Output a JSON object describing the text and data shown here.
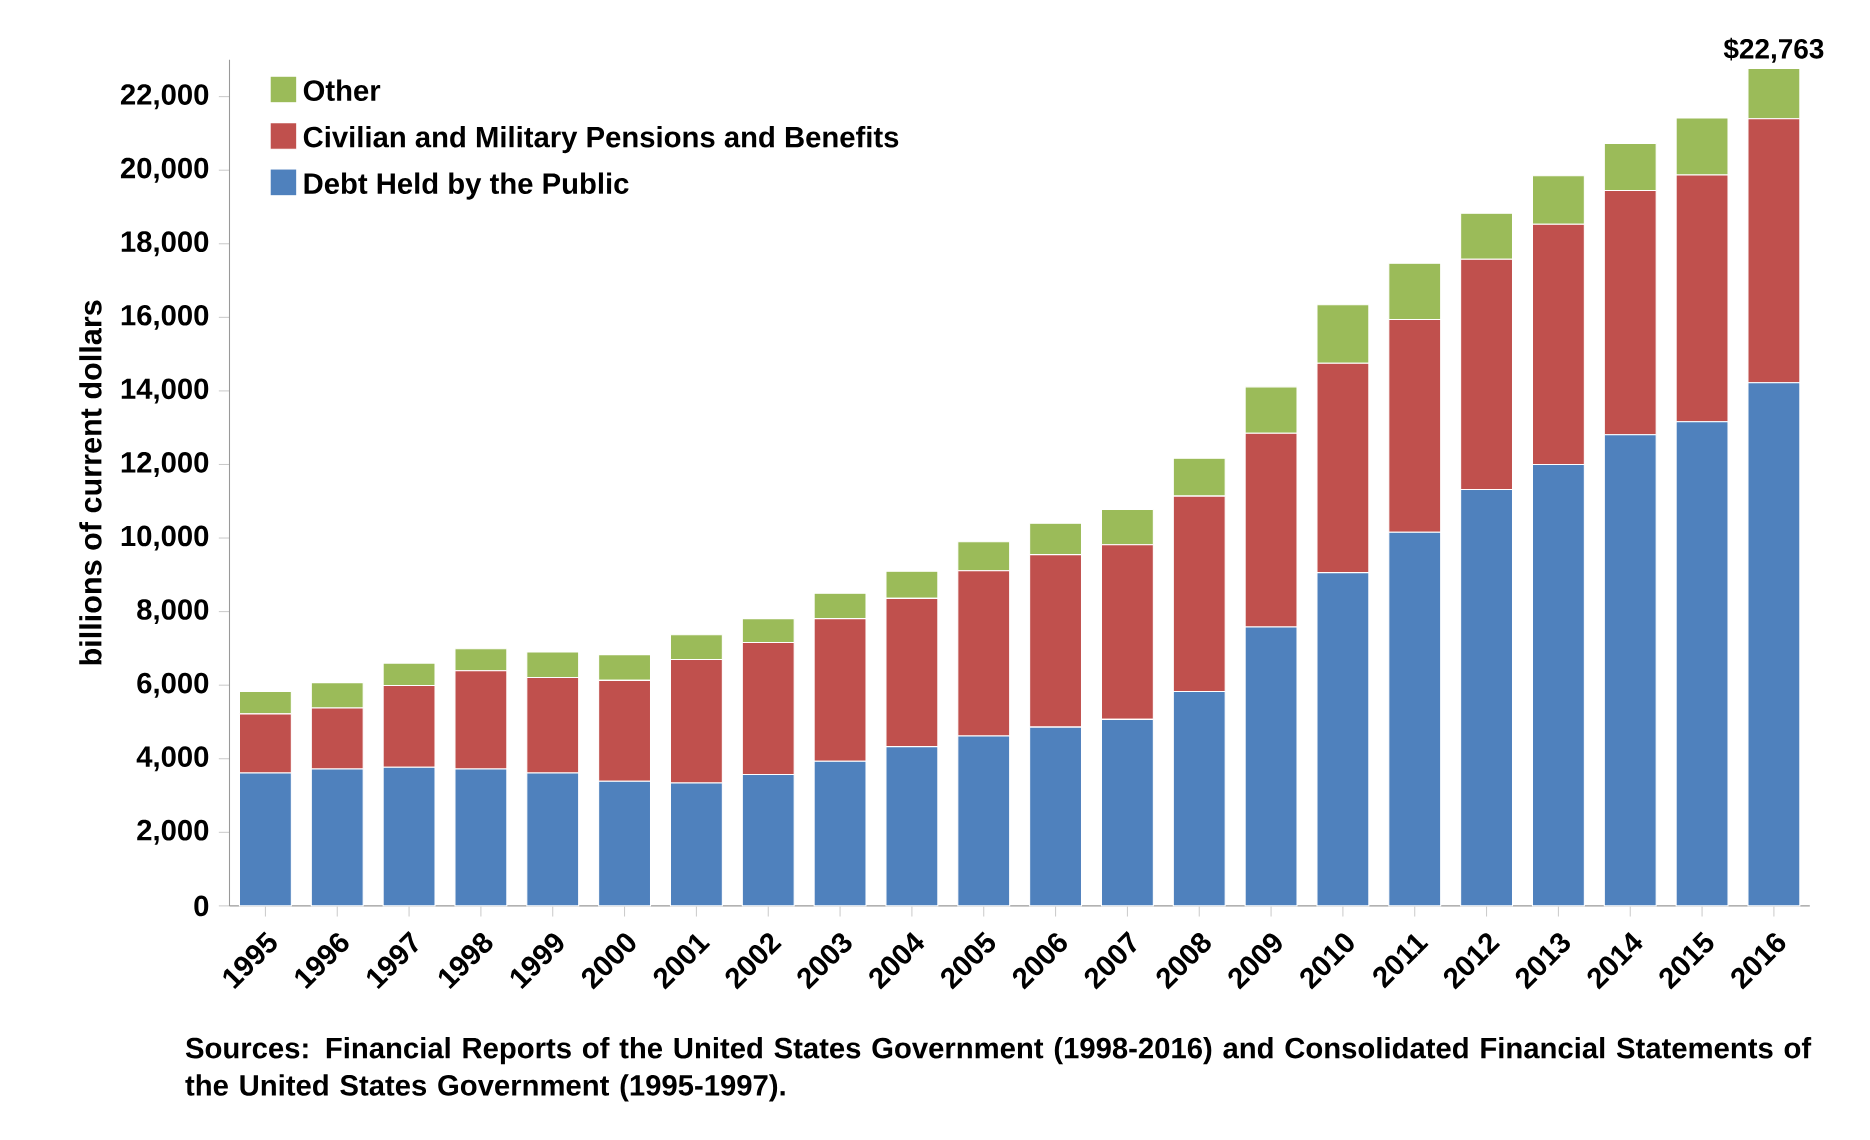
{
  "chart_data": {
    "type": "bar",
    "stacked": true,
    "ylabel": "billions of current dollars",
    "categories": [
      "1995",
      "1996",
      "1997",
      "1998",
      "1999",
      "2000",
      "2001",
      "2002",
      "2003",
      "2004",
      "2005",
      "2006",
      "2007",
      "2008",
      "2009",
      "2010",
      "2011",
      "2012",
      "2013",
      "2014",
      "2015",
      "2016"
    ],
    "series": [
      {
        "name": "Debt Held by the Public",
        "color": "#4f81bd",
        "values": [
          3610,
          3720,
          3770,
          3720,
          3610,
          3390,
          3340,
          3570,
          3930,
          4330,
          4620,
          4860,
          5070,
          5830,
          7580,
          9060,
          10160,
          11320,
          12000,
          12810,
          13160,
          14220
        ]
      },
      {
        "name": "Civilian and Military Pensions and Benefits",
        "color": "#c0504d",
        "values": [
          1610,
          1660,
          2220,
          2670,
          2600,
          2740,
          3360,
          3590,
          3880,
          4030,
          4490,
          4690,
          4750,
          5310,
          5270,
          5690,
          5780,
          6260,
          6530,
          6640,
          6710,
          7180
        ]
      },
      {
        "name": "Other",
        "color": "#9bbb59",
        "values": [
          610,
          690,
          610,
          600,
          690,
          700,
          670,
          650,
          690,
          740,
          790,
          850,
          960,
          1030,
          1260,
          1590,
          1530,
          1250,
          1320,
          1280,
          1550,
          1363
        ]
      }
    ],
    "totals": [
      null,
      null,
      null,
      null,
      null,
      null,
      null,
      null,
      null,
      null,
      null,
      null,
      null,
      null,
      null,
      null,
      null,
      null,
      null,
      null,
      null,
      "$22,763"
    ],
    "ylim": [
      0,
      23000
    ],
    "yticks": [
      {
        "value": 0,
        "label": "0"
      },
      {
        "value": 2000,
        "label": "2,000"
      },
      {
        "value": 4000,
        "label": "4,000"
      },
      {
        "value": 6000,
        "label": "6,000"
      },
      {
        "value": 8000,
        "label": "8,000"
      },
      {
        "value": 10000,
        "label": "10,000"
      },
      {
        "value": 12000,
        "label": "12,000"
      },
      {
        "value": 14000,
        "label": "14,000"
      },
      {
        "value": 16000,
        "label": "16,000"
      },
      {
        "value": 18000,
        "label": "18,000"
      },
      {
        "value": 20000,
        "label": "20,000"
      },
      {
        "value": 22000,
        "label": "22,000"
      }
    ],
    "legend": "top left",
    "grid": false,
    "annotations": [
      "Sources: Financial Reports of the United States Government (1998-2016) and Consolidated Financial Statements of the United States Government (1995-1997)."
    ]
  }
}
